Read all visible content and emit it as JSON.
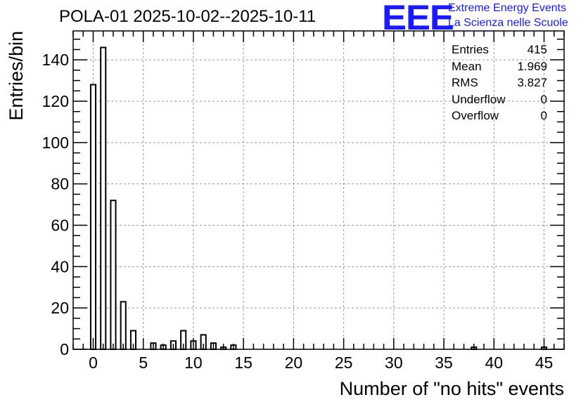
{
  "header": {
    "title": "POLA-01 2025-10-02--2025-10-11"
  },
  "logo": {
    "mark": "EEE",
    "line1": "Extreme Energy Events",
    "line2": "La Scienza nelle Scuole",
    "color": "#1a1aff"
  },
  "stats": [
    {
      "label": "Entries",
      "value": "415"
    },
    {
      "label": "Mean",
      "value": "1.969"
    },
    {
      "label": "RMS",
      "value": "3.827"
    },
    {
      "label": "Underflow",
      "value": "0"
    },
    {
      "label": "Overflow",
      "value": "0"
    }
  ],
  "chart_data": {
    "type": "bar",
    "title": "POLA-01 2025-10-02--2025-10-11",
    "xlabel": "Number of \"no hits\" events",
    "ylabel": "Entries/bin",
    "xlim": [
      -2,
      47
    ],
    "ylim": [
      0,
      154
    ],
    "xticks": [
      0,
      5,
      10,
      15,
      20,
      25,
      30,
      35,
      40,
      45
    ],
    "yticks": [
      0,
      20,
      40,
      60,
      80,
      100,
      120,
      140
    ],
    "grid": true,
    "bar_width": 0.5,
    "bins": [
      {
        "x": 0,
        "value": 128
      },
      {
        "x": 1,
        "value": 146
      },
      {
        "x": 2,
        "value": 72
      },
      {
        "x": 3,
        "value": 23
      },
      {
        "x": 4,
        "value": 9
      },
      {
        "x": 6,
        "value": 3
      },
      {
        "x": 7,
        "value": 2
      },
      {
        "x": 8,
        "value": 4
      },
      {
        "x": 9,
        "value": 9
      },
      {
        "x": 10,
        "value": 4
      },
      {
        "x": 11,
        "value": 7
      },
      {
        "x": 12,
        "value": 3
      },
      {
        "x": 13,
        "value": 1
      },
      {
        "x": 14,
        "value": 2
      },
      {
        "x": 38,
        "value": 1
      },
      {
        "x": 45,
        "value": 1
      }
    ]
  }
}
